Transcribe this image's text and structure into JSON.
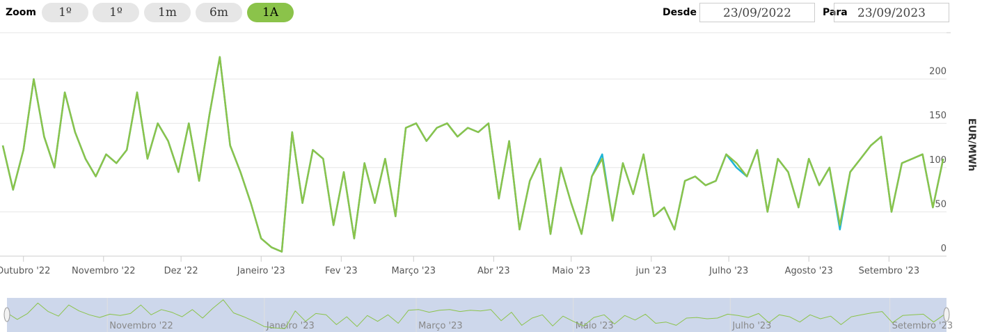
{
  "toolbar": {
    "zoom_label": "Zoom",
    "buttons": [
      "1º",
      "1º",
      "1m",
      "6m",
      "1A"
    ],
    "active_button": 4,
    "from_label": "Desde",
    "from": "23/09/2022",
    "to_label": "Para",
    "to": "23/09/2023"
  },
  "chart_data": {
    "type": "line",
    "y_label": "EUR/MWh",
    "x": [
      "2022-09-23",
      "2022-09-27",
      "2022-10-01",
      "2022-10-05",
      "2022-10-09",
      "2022-10-13",
      "2022-10-17",
      "2022-10-21",
      "2022-10-25",
      "2022-10-29",
      "2022-11-02",
      "2022-11-06",
      "2022-11-10",
      "2022-11-14",
      "2022-11-18",
      "2022-11-22",
      "2022-11-26",
      "2022-11-30",
      "2022-12-04",
      "2022-12-08",
      "2022-12-12",
      "2022-12-16",
      "2022-12-20",
      "2022-12-24",
      "2022-12-28",
      "2023-01-01",
      "2023-01-05",
      "2023-01-09",
      "2023-01-13",
      "2023-01-17",
      "2023-01-21",
      "2023-01-25",
      "2023-01-29",
      "2023-02-02",
      "2023-02-06",
      "2023-02-10",
      "2023-02-14",
      "2023-02-18",
      "2023-02-22",
      "2023-02-26",
      "2023-03-02",
      "2023-03-06",
      "2023-03-10",
      "2023-03-14",
      "2023-03-18",
      "2023-03-22",
      "2023-03-26",
      "2023-03-30",
      "2023-04-03",
      "2023-04-07",
      "2023-04-11",
      "2023-04-15",
      "2023-04-19",
      "2023-04-23",
      "2023-04-27",
      "2023-05-01",
      "2023-05-05",
      "2023-05-09",
      "2023-05-13",
      "2023-05-17",
      "2023-05-21",
      "2023-05-25",
      "2023-05-29",
      "2023-06-02",
      "2023-06-06",
      "2023-06-10",
      "2023-06-14",
      "2023-06-18",
      "2023-06-22",
      "2023-06-26",
      "2023-06-30",
      "2023-07-04",
      "2023-07-08",
      "2023-07-12",
      "2023-07-16",
      "2023-07-20",
      "2023-07-24",
      "2023-07-28",
      "2023-08-01",
      "2023-08-05",
      "2023-08-09",
      "2023-08-13",
      "2023-08-17",
      "2023-08-21",
      "2023-08-25",
      "2023-08-29",
      "2023-09-02",
      "2023-09-06",
      "2023-09-10",
      "2023-09-14",
      "2023-09-18",
      "2023-09-22"
    ],
    "series": [
      {
        "color": "#1fb5d6",
        "values": [
          125,
          75,
          120,
          200,
          135,
          100,
          185,
          140,
          110,
          90,
          115,
          105,
          120,
          185,
          110,
          150,
          130,
          95,
          150,
          85,
          160,
          225,
          125,
          95,
          60,
          20,
          10,
          5,
          140,
          60,
          120,
          110,
          35,
          95,
          20,
          105,
          60,
          110,
          45,
          145,
          150,
          130,
          145,
          150,
          135,
          145,
          140,
          150,
          65,
          130,
          30,
          85,
          110,
          25,
          100,
          60,
          25,
          90,
          115,
          40,
          105,
          70,
          115,
          45,
          55,
          30,
          85,
          90,
          80,
          85,
          115,
          100,
          90,
          120,
          50,
          110,
          95,
          55,
          110,
          80,
          100,
          30,
          95,
          110,
          125,
          135,
          50,
          105,
          110,
          115,
          55,
          110
        ]
      },
      {
        "color": "#8bc34a",
        "values": [
          125,
          75,
          120,
          200,
          135,
          100,
          185,
          140,
          110,
          90,
          115,
          105,
          120,
          185,
          110,
          150,
          130,
          95,
          150,
          85,
          160,
          225,
          125,
          95,
          60,
          20,
          10,
          5,
          140,
          60,
          120,
          110,
          35,
          95,
          20,
          105,
          60,
          110,
          45,
          145,
          150,
          130,
          145,
          150,
          135,
          145,
          140,
          150,
          65,
          130,
          30,
          85,
          110,
          25,
          100,
          60,
          25,
          90,
          110,
          40,
          105,
          70,
          115,
          45,
          55,
          30,
          85,
          90,
          80,
          85,
          115,
          105,
          90,
          120,
          50,
          110,
          95,
          55,
          110,
          80,
          100,
          35,
          95,
          110,
          125,
          135,
          50,
          105,
          110,
          115,
          55,
          110
        ]
      }
    ],
    "xlim": [
      "2022-09-23",
      "2023-09-23"
    ],
    "ylim": [
      0,
      250
    ],
    "yticks": [
      0,
      50,
      100,
      150,
      200
    ],
    "grid": true,
    "xticks": [
      {
        "value": "2022-10-01",
        "label": "Outubro '22"
      },
      {
        "value": "2022-11-01",
        "label": "Novembro '22"
      },
      {
        "value": "2022-12-01",
        "label": "Dez '22"
      },
      {
        "value": "2023-01-01",
        "label": "Janeiro '23"
      },
      {
        "value": "2023-02-01",
        "label": "Fev '23"
      },
      {
        "value": "2023-03-01",
        "label": "Março '23"
      },
      {
        "value": "2023-04-01",
        "label": "Abr '23"
      },
      {
        "value": "2023-05-01",
        "label": "Maio '23"
      },
      {
        "value": "2023-06-01",
        "label": "jun '23"
      },
      {
        "value": "2023-07-01",
        "label": "Julho '23"
      },
      {
        "value": "2023-08-01",
        "label": "Agosto '23"
      },
      {
        "value": "2023-09-01",
        "label": "Setembro '23"
      }
    ],
    "navigator_ticks": [
      {
        "value": "2022-11-01",
        "label": "Novembro '22"
      },
      {
        "value": "2023-01-01",
        "label": "Janeiro '23"
      },
      {
        "value": "2023-03-01",
        "label": "Março '23"
      },
      {
        "value": "2023-05-01",
        "label": "Maio '23"
      },
      {
        "value": "2023-07-01",
        "label": "Julho '23"
      },
      {
        "value": "2023-09-01",
        "label": "Setembro '23"
      }
    ]
  }
}
